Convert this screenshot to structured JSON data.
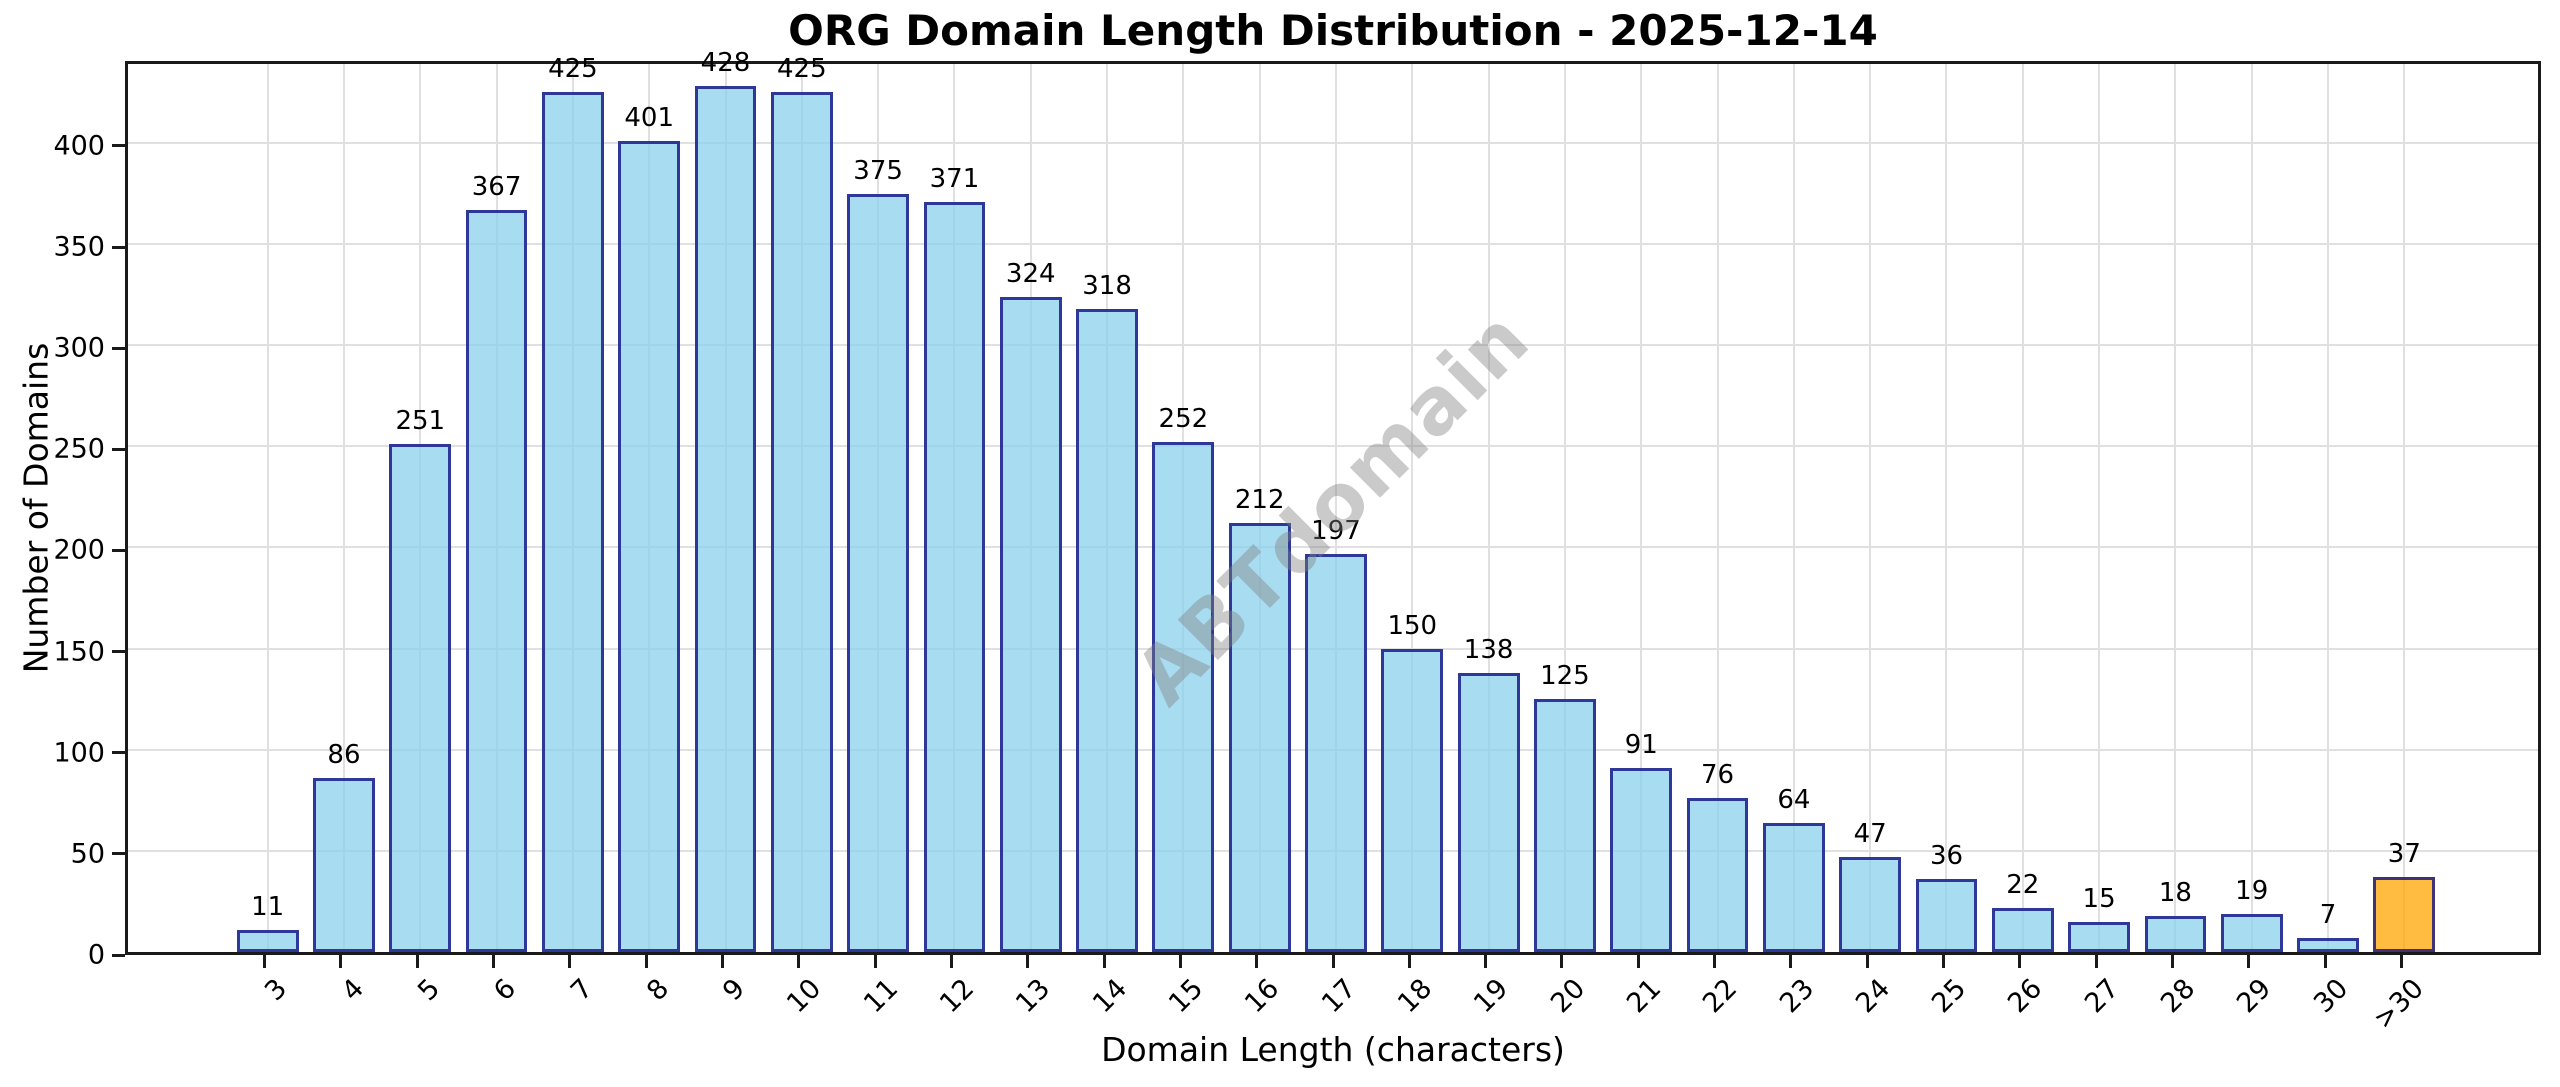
{
  "chart_data": {
    "type": "bar",
    "title": "ORG Domain Length Distribution - 2025-12-14",
    "xlabel": "Domain Length (characters)",
    "ylabel": "Number of Domains",
    "categories": [
      "3",
      "4",
      "5",
      "6",
      "7",
      "8",
      "9",
      "10",
      "11",
      "12",
      "13",
      "14",
      "15",
      "16",
      "17",
      "18",
      "19",
      "20",
      "21",
      "22",
      "23",
      "24",
      "25",
      "26",
      "27",
      "28",
      "29",
      "30",
      ">30"
    ],
    "values": [
      11,
      86,
      251,
      367,
      425,
      401,
      428,
      425,
      375,
      371,
      324,
      318,
      252,
      212,
      197,
      150,
      138,
      125,
      91,
      76,
      64,
      47,
      36,
      22,
      15,
      18,
      19,
      7,
      37
    ],
    "bar_labels_shown": true,
    "yticks": [
      0,
      50,
      100,
      150,
      200,
      250,
      300,
      350,
      400
    ],
    "ylim": [
      0,
      442
    ],
    "grid": "both",
    "legend": "none",
    "highlight_category": ">30",
    "watermark": "ABTdomain",
    "colors": {
      "bar_fill": "rgba(135,206,235,0.72)",
      "bar_edge": "rgba(15,15,130,0.8)",
      "highlight_fill": "rgba(255,165,0,0.75)",
      "grid": "#e0e0e0",
      "spine": "#1a1a1a",
      "watermark": "rgba(128,128,128,0.42)"
    }
  }
}
